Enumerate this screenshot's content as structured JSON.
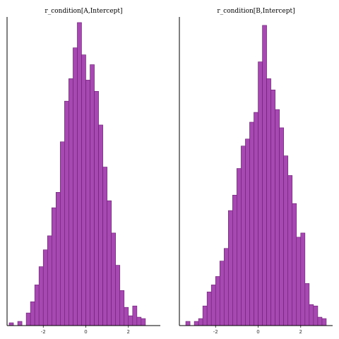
{
  "chart_data": [
    {
      "type": "bar",
      "title": "r_condition[A,Intercept]",
      "xlabel": "",
      "ylabel": "",
      "xlim": [
        -3.7,
        3.5
      ],
      "ylim": [
        0,
        220
      ],
      "xticks": [
        -2,
        0,
        2
      ],
      "xtick_labels": [
        "-2",
        "0",
        "2"
      ],
      "grid": false,
      "fill_color": "#a64ab1",
      "bin_width": 0.2,
      "bin_start": -3.6,
      "values": [
        2,
        0,
        3,
        0,
        9,
        17,
        29,
        42,
        54,
        64,
        84,
        95,
        131,
        160,
        176,
        198,
        216,
        193,
        175,
        186,
        167,
        143,
        113,
        89,
        66,
        43,
        25,
        13,
        7,
        14,
        6,
        5
      ]
    },
    {
      "type": "bar",
      "title": "r_condition[B,Intercept]",
      "xlabel": "",
      "ylabel": "",
      "xlim": [
        -3.7,
        3.5
      ],
      "ylim": [
        0,
        220
      ],
      "xticks": [
        -2,
        0,
        2
      ],
      "xtick_labels": [
        "-2",
        "0",
        "2"
      ],
      "grid": false,
      "fill_color": "#a64ab1",
      "bin_width": 0.2,
      "bin_start": -3.4,
      "values": [
        3,
        0,
        3,
        5,
        14,
        24,
        29,
        35,
        46,
        55,
        82,
        93,
        112,
        128,
        133,
        145,
        152,
        188,
        214,
        176,
        168,
        154,
        141,
        121,
        107,
        87,
        63,
        66,
        30,
        15,
        14,
        6,
        5
      ]
    }
  ]
}
